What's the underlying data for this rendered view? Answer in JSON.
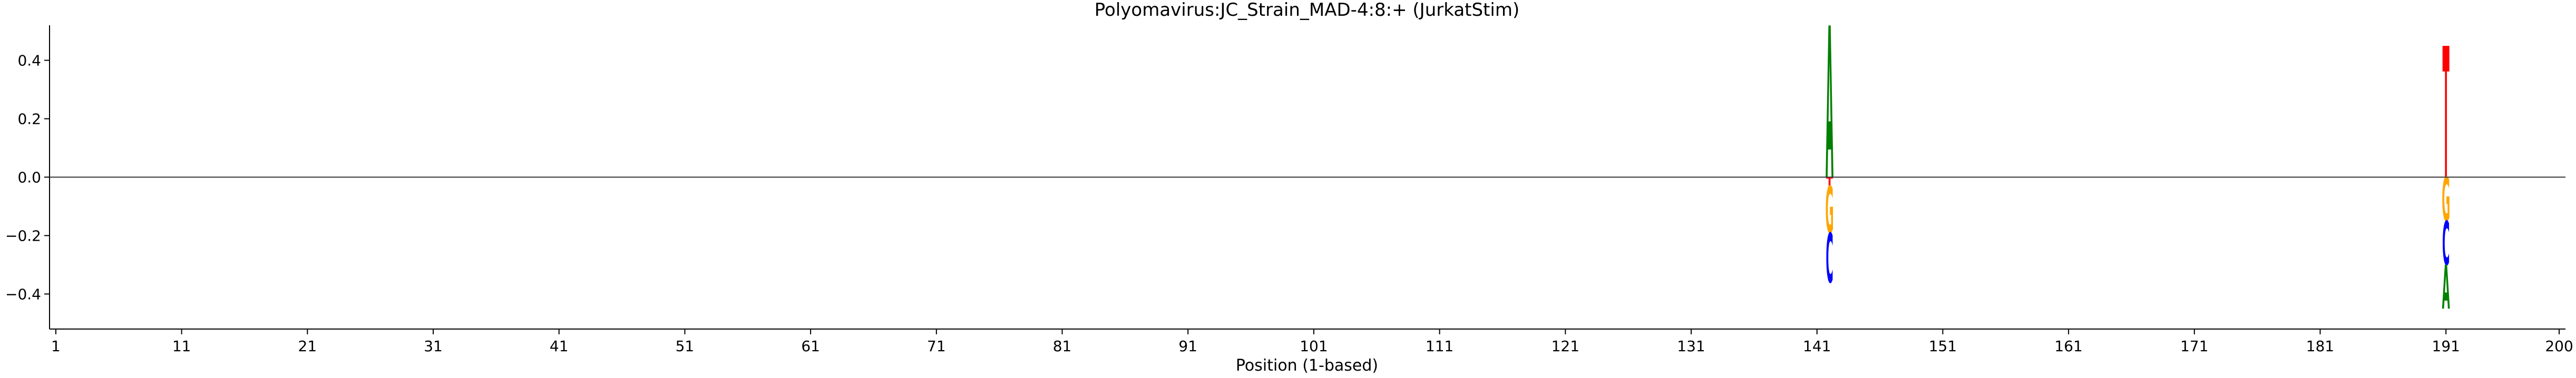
{
  "chart_data": {
    "type": "sequence-logo",
    "title": "Polyomavirus:JC_Strain_MAD-4:8:+  (JurkatStim)",
    "xlabel": "Position (1-based)",
    "ylabel": "",
    "xlim": [
      0.5,
      200.5
    ],
    "ylim": [
      -0.52,
      0.52
    ],
    "x_ticks": [
      1,
      11,
      21,
      31,
      41,
      51,
      61,
      71,
      81,
      91,
      101,
      111,
      121,
      131,
      141,
      151,
      161,
      171,
      181,
      191,
      200
    ],
    "y_ticks": [
      -0.4,
      -0.2,
      0.0,
      0.2,
      0.4
    ],
    "y_tick_labels": [
      "−0.4",
      "−0.2",
      "0.0",
      "0.2",
      "0.4"
    ],
    "zero_line": true,
    "grid": false,
    "letter_colors": {
      "A": "#008000",
      "C": "#0000ff",
      "G": "#ffa500",
      "T": "#ff0000"
    },
    "positions": [
      {
        "position": 142,
        "letters": [
          {
            "base": "A",
            "height": 0.52
          },
          {
            "base": "T",
            "height": -0.03
          },
          {
            "base": "G",
            "height": -0.16
          },
          {
            "base": "C",
            "height": -0.17
          }
        ]
      },
      {
        "position": 191,
        "letters": [
          {
            "base": "T",
            "height": 0.45
          },
          {
            "base": "G",
            "height": -0.15
          },
          {
            "base": "C",
            "height": -0.15
          },
          {
            "base": "A",
            "height": -0.15
          }
        ]
      }
    ]
  }
}
